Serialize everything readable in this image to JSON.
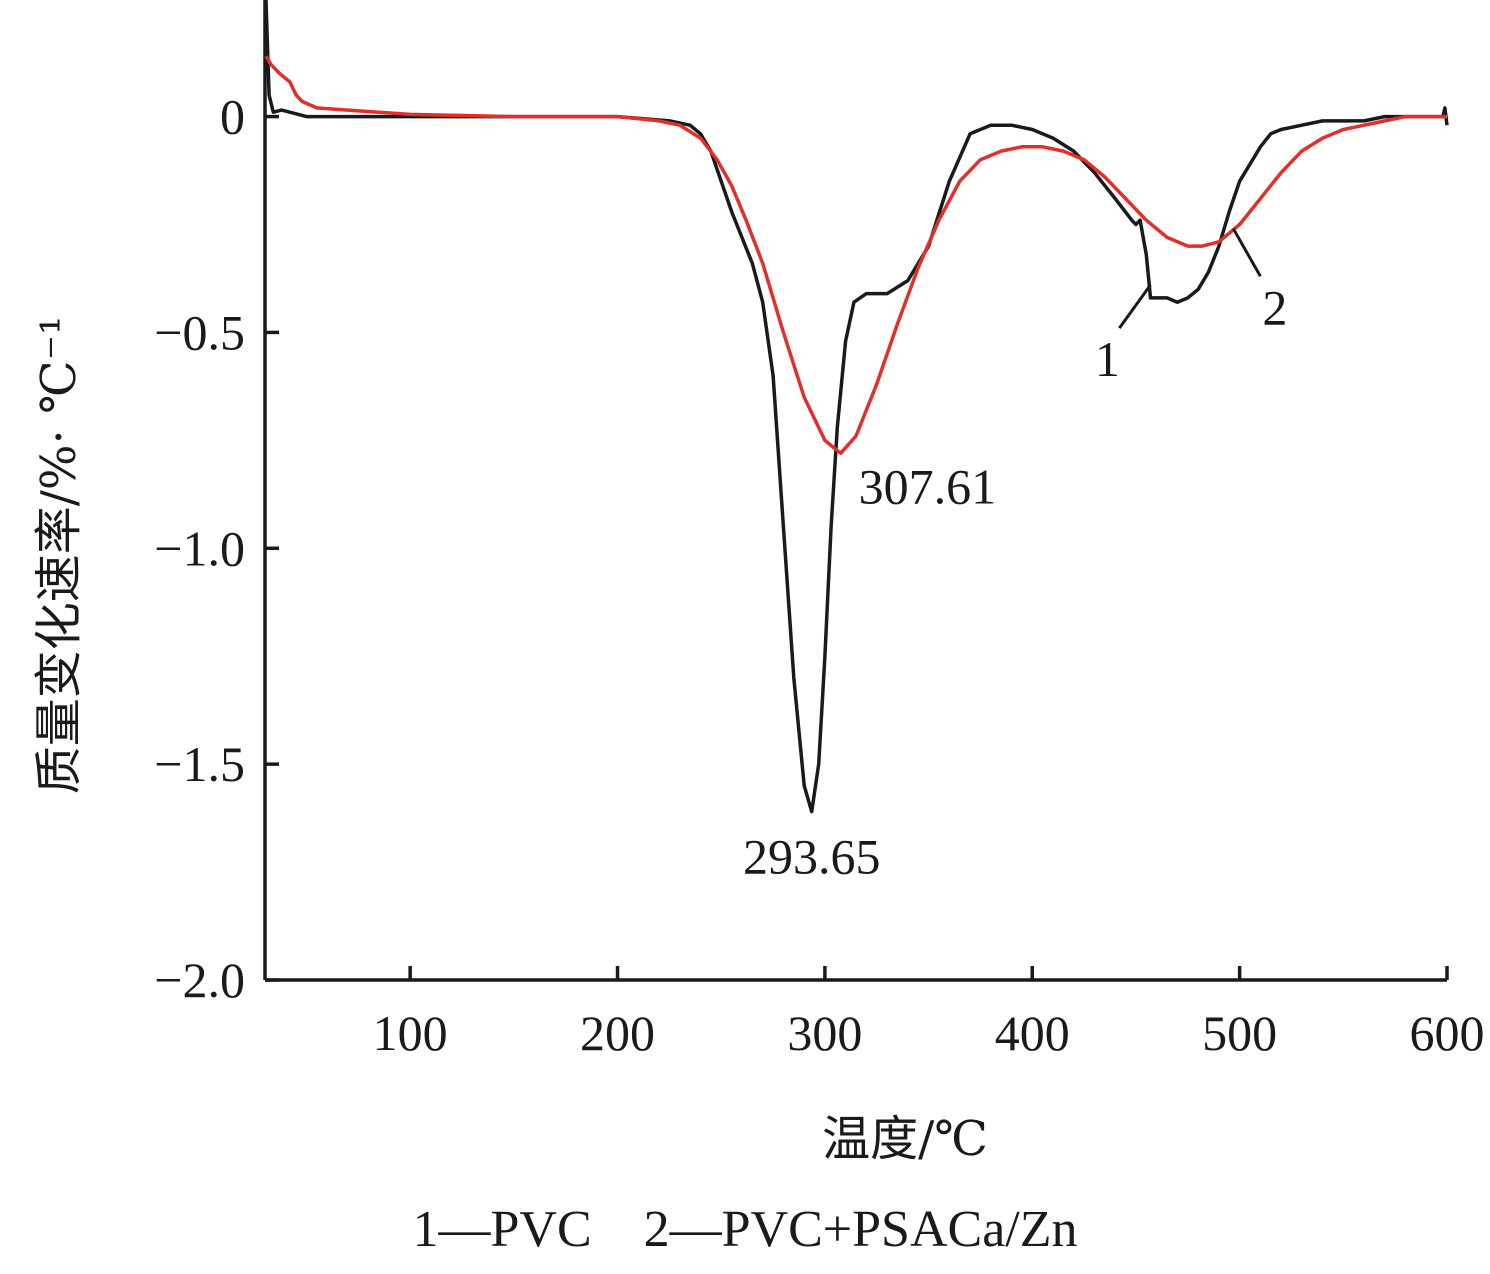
{
  "chart_data": {
    "type": "line",
    "xlabel": "温度/℃",
    "ylabel": "质量变化速率/%· ℃⁻¹",
    "xlim": [
      30,
      600
    ],
    "ylim": [
      -2.0,
      0.27
    ],
    "x_ticks": [
      100,
      200,
      300,
      400,
      500,
      600
    ],
    "x_tick_labels": [
      "100",
      "200",
      "300",
      "400",
      "500",
      "600"
    ],
    "y_ticks": [
      0,
      -0.5,
      -1.0,
      -1.5,
      -2.0
    ],
    "y_tick_labels": [
      "0",
      "−0.5",
      "−1.0",
      "−1.5",
      "−2.0"
    ],
    "grid": false,
    "legend_text": "1—PVC    2—PVC+PSACa/Zn",
    "series": [
      {
        "name": "1",
        "color": "#1a1a1a",
        "points": [
          [
            30.5,
            0.27
          ],
          [
            31,
            0.19
          ],
          [
            32,
            0.05
          ],
          [
            34,
            0.01
          ],
          [
            38,
            0.015
          ],
          [
            42,
            0.01
          ],
          [
            50,
            0.0
          ],
          [
            100,
            0.0
          ],
          [
            150,
            0.0
          ],
          [
            200,
            0.0
          ],
          [
            225,
            -0.01
          ],
          [
            235,
            -0.02
          ],
          [
            240,
            -0.04
          ],
          [
            245,
            -0.08
          ],
          [
            250,
            -0.15
          ],
          [
            255,
            -0.22
          ],
          [
            260,
            -0.28
          ],
          [
            265,
            -0.34
          ],
          [
            270,
            -0.43
          ],
          [
            275,
            -0.6
          ],
          [
            280,
            -0.95
          ],
          [
            285,
            -1.3
          ],
          [
            290,
            -1.55
          ],
          [
            293.65,
            -1.61
          ],
          [
            297,
            -1.5
          ],
          [
            300,
            -1.25
          ],
          [
            303,
            -0.95
          ],
          [
            306,
            -0.72
          ],
          [
            310,
            -0.52
          ],
          [
            314,
            -0.43
          ],
          [
            320,
            -0.41
          ],
          [
            330,
            -0.41
          ],
          [
            340,
            -0.38
          ],
          [
            350,
            -0.3
          ],
          [
            360,
            -0.15
          ],
          [
            370,
            -0.04
          ],
          [
            380,
            -0.02
          ],
          [
            390,
            -0.02
          ],
          [
            400,
            -0.03
          ],
          [
            410,
            -0.05
          ],
          [
            420,
            -0.08
          ],
          [
            430,
            -0.13
          ],
          [
            440,
            -0.19
          ],
          [
            448,
            -0.24
          ],
          [
            450,
            -0.25
          ],
          [
            452,
            -0.24
          ],
          [
            455,
            -0.32
          ],
          [
            457,
            -0.42
          ],
          [
            460,
            -0.42
          ],
          [
            465,
            -0.42
          ],
          [
            470,
            -0.43
          ],
          [
            475,
            -0.42
          ],
          [
            480,
            -0.4
          ],
          [
            485,
            -0.36
          ],
          [
            490,
            -0.3
          ],
          [
            495,
            -0.22
          ],
          [
            500,
            -0.15
          ],
          [
            505,
            -0.11
          ],
          [
            510,
            -0.07
          ],
          [
            515,
            -0.04
          ],
          [
            520,
            -0.03
          ],
          [
            530,
            -0.02
          ],
          [
            540,
            -0.01
          ],
          [
            550,
            -0.01
          ],
          [
            560,
            -0.01
          ],
          [
            570,
            0.0
          ],
          [
            580,
            0.0
          ],
          [
            590,
            0.0
          ],
          [
            598,
            0.0
          ],
          [
            599,
            0.02
          ],
          [
            600,
            -0.02
          ]
        ]
      },
      {
        "name": "2",
        "color": "#e0302a",
        "points": [
          [
            30.5,
            0.14
          ],
          [
            33,
            0.12
          ],
          [
            37,
            0.1
          ],
          [
            42,
            0.08
          ],
          [
            45,
            0.05
          ],
          [
            48,
            0.035
          ],
          [
            55,
            0.02
          ],
          [
            70,
            0.015
          ],
          [
            100,
            0.005
          ],
          [
            150,
            0.0
          ],
          [
            200,
            0.0
          ],
          [
            220,
            -0.01
          ],
          [
            230,
            -0.02
          ],
          [
            240,
            -0.05
          ],
          [
            248,
            -0.1
          ],
          [
            255,
            -0.16
          ],
          [
            262,
            -0.24
          ],
          [
            270,
            -0.34
          ],
          [
            280,
            -0.5
          ],
          [
            290,
            -0.65
          ],
          [
            300,
            -0.75
          ],
          [
            307.61,
            -0.78
          ],
          [
            315,
            -0.74
          ],
          [
            325,
            -0.62
          ],
          [
            335,
            -0.48
          ],
          [
            345,
            -0.35
          ],
          [
            355,
            -0.24
          ],
          [
            365,
            -0.15
          ],
          [
            375,
            -0.1
          ],
          [
            385,
            -0.08
          ],
          [
            395,
            -0.07
          ],
          [
            405,
            -0.07
          ],
          [
            415,
            -0.08
          ],
          [
            425,
            -0.1
          ],
          [
            435,
            -0.14
          ],
          [
            445,
            -0.19
          ],
          [
            455,
            -0.24
          ],
          [
            465,
            -0.28
          ],
          [
            475,
            -0.3
          ],
          [
            482,
            -0.3
          ],
          [
            490,
            -0.29
          ],
          [
            500,
            -0.25
          ],
          [
            510,
            -0.19
          ],
          [
            520,
            -0.13
          ],
          [
            530,
            -0.08
          ],
          [
            540,
            -0.05
          ],
          [
            550,
            -0.03
          ],
          [
            560,
            -0.02
          ],
          [
            570,
            -0.01
          ],
          [
            580,
            0.0
          ],
          [
            590,
            0.0
          ],
          [
            600,
            0.0
          ]
        ]
      }
    ],
    "annotations": [
      {
        "text": "293.65",
        "x": 293.65,
        "y": -1.61,
        "anchor": "below"
      },
      {
        "text": "307.61",
        "x": 307.61,
        "y": -0.78,
        "anchor": "below-right"
      }
    ],
    "series_markers": [
      {
        "text": "1",
        "leader_from": [
          457,
          -0.39
        ],
        "leader_to": [
          442,
          -0.49
        ]
      },
      {
        "text": "2",
        "leader_from": [
          497,
          -0.26
        ],
        "leader_to": [
          510,
          -0.37
        ]
      }
    ]
  }
}
